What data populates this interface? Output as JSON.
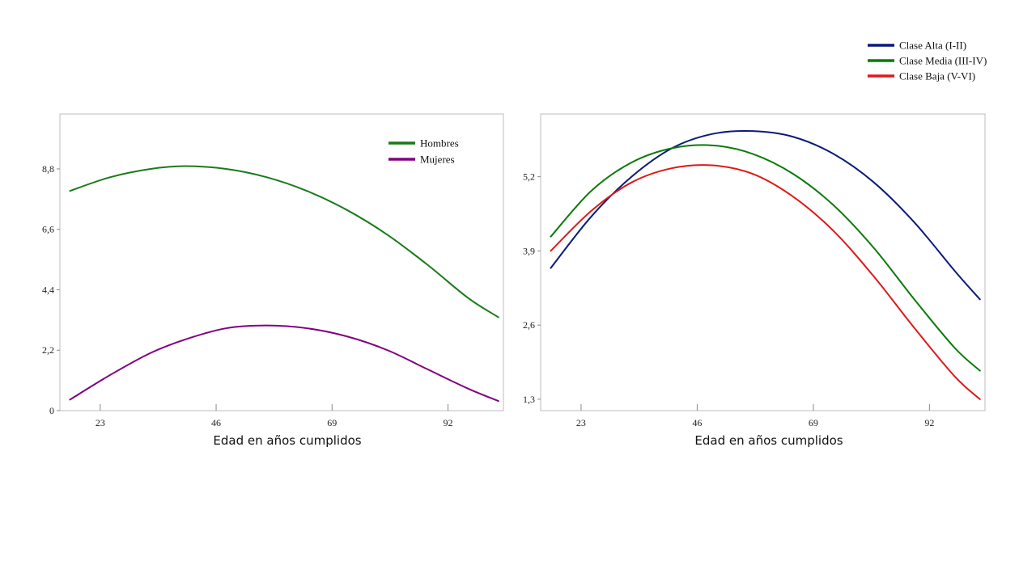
{
  "chart_data": [
    {
      "type": "line",
      "xlabel": "Edad en años cumplidos",
      "ylabel": "",
      "xlim": [
        15,
        103
      ],
      "ylim": [
        0,
        10.8
      ],
      "xticks": [
        23,
        46,
        69,
        92
      ],
      "yticks": [
        0,
        2.2,
        4.4,
        6.6,
        8.8
      ],
      "ytick_labels": [
        "0",
        "2,2",
        "4,4",
        "6,6",
        "8,8"
      ],
      "grid": false,
      "legend_position": "top-right",
      "series": [
        {
          "name": "Hombres",
          "color": "#1a7a1a",
          "x": [
            17,
            25,
            33,
            40,
            48,
            56,
            64,
            72,
            80,
            88,
            96,
            102
          ],
          "y": [
            8.0,
            8.5,
            8.8,
            8.9,
            8.8,
            8.5,
            8.0,
            7.3,
            6.4,
            5.3,
            4.1,
            3.4
          ]
        },
        {
          "name": "Mujeres",
          "color": "#800080",
          "x": [
            17,
            25,
            33,
            40,
            48,
            56,
            64,
            72,
            80,
            88,
            96,
            102
          ],
          "y": [
            0.4,
            1.3,
            2.1,
            2.6,
            3.0,
            3.1,
            3.0,
            2.7,
            2.2,
            1.5,
            0.8,
            0.35
          ]
        }
      ]
    },
    {
      "type": "line",
      "xlabel": "Edad en años cumplidos",
      "ylabel": "",
      "xlim": [
        15,
        103
      ],
      "ylim": [
        1.1,
        6.3
      ],
      "xticks": [
        23,
        46,
        69,
        92
      ],
      "yticks": [
        1.3,
        2.6,
        3.9,
        5.2
      ],
      "ytick_labels": [
        "1,3",
        "2,6",
        "3,9",
        "5,2"
      ],
      "grid": false,
      "legend_position": "top-right, outside plot",
      "series": [
        {
          "name": "Clase Alta (I-II)",
          "color": "#0a1a7a",
          "x": [
            17,
            25,
            33,
            41,
            49,
            57,
            65,
            73,
            81,
            89,
            97,
            102
          ],
          "y": [
            3.6,
            4.5,
            5.2,
            5.7,
            5.95,
            6.0,
            5.9,
            5.6,
            5.1,
            4.4,
            3.55,
            3.05
          ]
        },
        {
          "name": "Clase Media (III-IV)",
          "color": "#0a7a0a",
          "x": [
            17,
            25,
            33,
            41,
            49,
            57,
            65,
            73,
            81,
            89,
            97,
            102
          ],
          "y": [
            4.15,
            4.95,
            5.45,
            5.7,
            5.75,
            5.6,
            5.25,
            4.7,
            3.95,
            3.05,
            2.2,
            1.8
          ]
        },
        {
          "name": "Clase Baja (V-VI)",
          "color": "#e01818",
          "x": [
            17,
            25,
            33,
            41,
            49,
            57,
            65,
            73,
            81,
            89,
            97,
            102
          ],
          "y": [
            3.9,
            4.6,
            5.1,
            5.35,
            5.4,
            5.25,
            4.85,
            4.25,
            3.45,
            2.55,
            1.7,
            1.3
          ]
        }
      ]
    }
  ]
}
